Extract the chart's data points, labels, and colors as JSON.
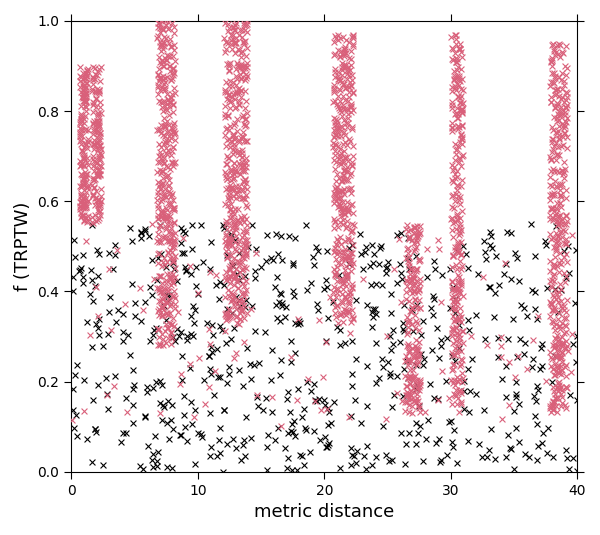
{
  "xlabel": "metric distance",
  "ylabel": "f (TRPTW)",
  "xlim": [
    0,
    40
  ],
  "ylim": [
    0.0,
    1.0
  ],
  "xticks": [
    0,
    10,
    20,
    30,
    40
  ],
  "yticks": [
    0.0,
    0.2,
    0.4,
    0.6,
    0.8,
    1.0
  ],
  "pink_color": "#d9607a",
  "black_color": "#000000",
  "bg_color": "#ffffff",
  "pink_columns": [
    [
      1.0,
      0.7,
      0.55,
      0.9,
      160
    ],
    [
      2.0,
      0.7,
      0.55,
      0.9,
      140
    ],
    [
      7.5,
      1.4,
      0.28,
      1.0,
      380
    ],
    [
      13.0,
      1.8,
      0.33,
      1.0,
      420
    ],
    [
      21.5,
      1.6,
      0.33,
      0.97,
      360
    ],
    [
      27.0,
      1.2,
      0.13,
      0.55,
      180
    ],
    [
      30.5,
      0.9,
      0.13,
      0.97,
      260
    ],
    [
      38.5,
      1.4,
      0.13,
      0.95,
      360
    ]
  ],
  "pink_scatter_n": 120,
  "black_scatter_n": 650,
  "marker_size": 18,
  "line_width": 0.8,
  "seed": 42
}
